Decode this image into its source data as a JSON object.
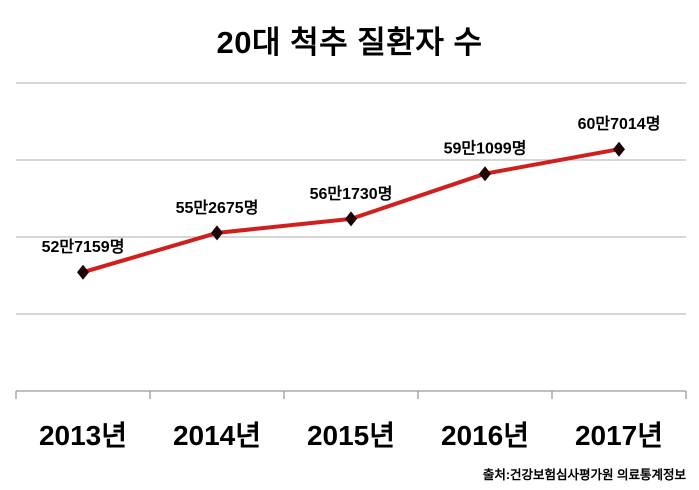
{
  "title": "20대 척추 질환자 수",
  "footer": {
    "source": "출처:건강보험심사평가원 의료통계정보"
  },
  "colors": {
    "background": "#ffffff",
    "line": "#d01f1f",
    "marker": "#1c0202",
    "gridline": "#bdbdbd",
    "axis": "#9a9a9a",
    "text": "#000000"
  },
  "chart_data": {
    "type": "line",
    "title": "20대 척추 질환자 수",
    "categories": [
      "2013년",
      "2014년",
      "2015년",
      "2016년",
      "2017년"
    ],
    "values": [
      527159,
      552675,
      561730,
      591099,
      607014
    ],
    "point_labels": [
      "52만7159명",
      "55만2675명",
      "56만1730명",
      "59만1099명",
      "60만7014명"
    ],
    "xlabel": "",
    "ylabel": "",
    "ylim": [
      450000,
      650000
    ],
    "grid_step": 50000,
    "grid": true,
    "legend": false,
    "marker": "diamond",
    "y_axis_labels_visible": false
  }
}
